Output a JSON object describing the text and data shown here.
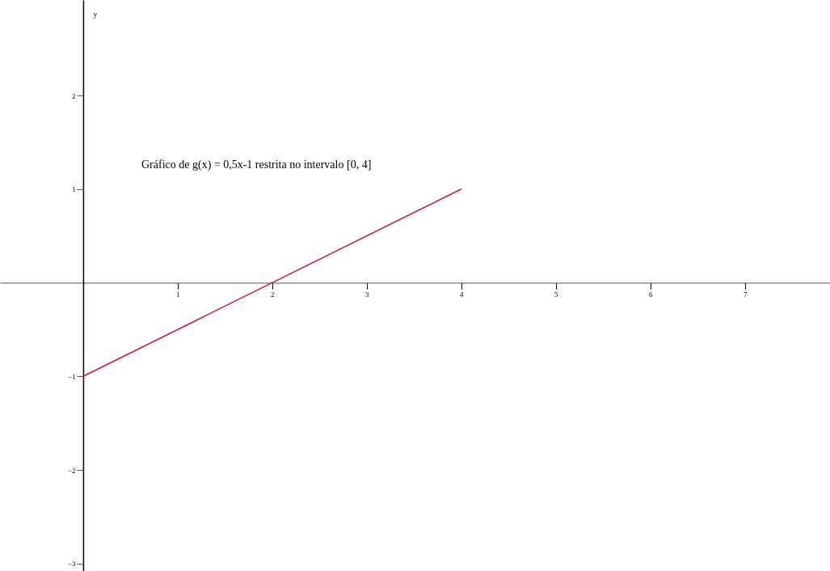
{
  "chart_data": {
    "type": "line",
    "annotations": [
      "Gráfico de g(x) = 0,5x-1 restrita no intervalo [0, 4]"
    ],
    "ylabel": "y",
    "x": [
      0,
      4
    ],
    "series": [
      {
        "color": "#cc1155",
        "values": [
          -1,
          1
        ]
      }
    ],
    "xlim": [
      -0.88,
      7.9
    ],
    "xticks": [
      1,
      2,
      3,
      4,
      5,
      6,
      7
    ],
    "ylim": [
      -3.08,
      3.02
    ],
    "yticks": [
      -3,
      -2,
      -1,
      1,
      2
    ],
    "grid": false
  }
}
